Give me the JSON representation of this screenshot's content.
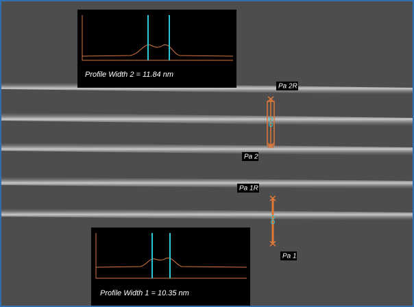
{
  "insets": [
    {
      "label": "Profile Width 2 = 11.84 nm"
    },
    {
      "label": "Profile Width 1 = 10.35 nm"
    }
  ],
  "markers": [
    {
      "label": "Pa 2R"
    },
    {
      "label": "Pa 2"
    },
    {
      "label": "Pa 1R"
    },
    {
      "label": "Pa 1"
    }
  ]
}
